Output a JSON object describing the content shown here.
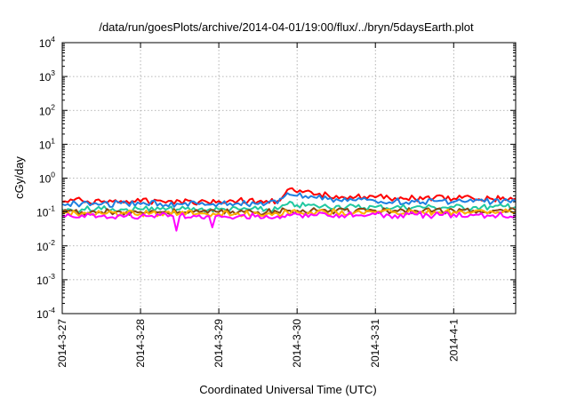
{
  "chart_data": {
    "type": "line",
    "title": "/data/run/goesPlots/archive/2014-04-01/19:00/flux/../bryn/5daysEarth.plot",
    "xlabel": "Coordinated Universal Time (UTC)",
    "ylabel": "cGy/day",
    "yscale": "log",
    "ylim": [
      0.0001,
      10000
    ],
    "y_ticks": [
      {
        "base": "10",
        "exp": "-4",
        "value": 0.0001
      },
      {
        "base": "10",
        "exp": "-3",
        "value": 0.001
      },
      {
        "base": "10",
        "exp": "-2",
        "value": 0.01
      },
      {
        "base": "10",
        "exp": "-1",
        "value": 0.1
      },
      {
        "base": "10",
        "exp": "0",
        "value": 1
      },
      {
        "base": "10",
        "exp": "1",
        "value": 10
      },
      {
        "base": "10",
        "exp": "2",
        "value": 100
      },
      {
        "base": "10",
        "exp": "3",
        "value": 1000
      },
      {
        "base": "10",
        "exp": "4",
        "value": 10000
      }
    ],
    "x_start": "2014-03-27T00:00",
    "x_end": "2014-04-01T19:00",
    "x_ticks": [
      {
        "label": "2014-3-27",
        "date": "2014-03-27T00:00"
      },
      {
        "label": "2014-3-28",
        "date": "2014-03-28T00:00"
      },
      {
        "label": "2014-3-29",
        "date": "2014-03-29T00:00"
      },
      {
        "label": "2014-3-30",
        "date": "2014-03-30T00:00"
      },
      {
        "label": "2014-3-31",
        "date": "2014-03-31T00:00"
      },
      {
        "label": "2014-4-1",
        "date": "2014-04-01T00:00"
      }
    ],
    "grid": true,
    "legend": "none",
    "series": [
      {
        "color": "#ff0000",
        "x": [
          "2014-03-27T00:00",
          "2014-03-27T06:00",
          "2014-03-27T12:00",
          "2014-03-27T18:00",
          "2014-03-28T00:00",
          "2014-03-28T06:00",
          "2014-03-28T12:00",
          "2014-03-28T18:00",
          "2014-03-29T00:00",
          "2014-03-29T06:00",
          "2014-03-29T12:00",
          "2014-03-29T18:00",
          "2014-03-29T21:00",
          "2014-03-30T00:00",
          "2014-03-30T06:00",
          "2014-03-30T12:00",
          "2014-03-30T18:00",
          "2014-03-31T00:00",
          "2014-03-31T06:00",
          "2014-03-31T12:00",
          "2014-03-31T18:00",
          "2014-04-01T00:00",
          "2014-04-01T06:00",
          "2014-04-01T12:00",
          "2014-04-01T19:00"
        ],
        "values": [
          0.2,
          0.22,
          0.2,
          0.21,
          0.2,
          0.22,
          0.21,
          0.2,
          0.21,
          0.22,
          0.2,
          0.21,
          0.45,
          0.38,
          0.33,
          0.3,
          0.28,
          0.27,
          0.26,
          0.25,
          0.26,
          0.25,
          0.25,
          0.24,
          0.25
        ]
      },
      {
        "color": "#1e7fe0",
        "x": [
          "2014-03-27T00:00",
          "2014-03-27T06:00",
          "2014-03-27T12:00",
          "2014-03-27T18:00",
          "2014-03-28T00:00",
          "2014-03-28T06:00",
          "2014-03-28T12:00",
          "2014-03-28T18:00",
          "2014-03-29T00:00",
          "2014-03-29T06:00",
          "2014-03-29T12:00",
          "2014-03-29T18:00",
          "2014-03-29T21:00",
          "2014-03-30T00:00",
          "2014-03-30T06:00",
          "2014-03-30T12:00",
          "2014-03-30T18:00",
          "2014-03-31T00:00",
          "2014-03-31T06:00",
          "2014-03-31T12:00",
          "2014-03-31T18:00",
          "2014-04-01T00:00",
          "2014-04-01T06:00",
          "2014-04-01T12:00",
          "2014-04-01T19:00"
        ],
        "values": [
          0.17,
          0.18,
          0.17,
          0.18,
          0.17,
          0.18,
          0.17,
          0.17,
          0.18,
          0.18,
          0.17,
          0.18,
          0.36,
          0.3,
          0.26,
          0.24,
          0.22,
          0.21,
          0.21,
          0.2,
          0.21,
          0.2,
          0.2,
          0.2,
          0.2
        ]
      },
      {
        "color": "#20c8a0",
        "x": [
          "2014-03-27T00:00",
          "2014-03-27T06:00",
          "2014-03-27T12:00",
          "2014-03-27T18:00",
          "2014-03-28T00:00",
          "2014-03-28T06:00",
          "2014-03-28T12:00",
          "2014-03-28T18:00",
          "2014-03-29T00:00",
          "2014-03-29T06:00",
          "2014-03-29T12:00",
          "2014-03-29T18:00",
          "2014-03-29T21:00",
          "2014-03-30T00:00",
          "2014-03-30T06:00",
          "2014-03-30T12:00",
          "2014-03-30T18:00",
          "2014-03-31T00:00",
          "2014-03-31T06:00",
          "2014-03-31T12:00",
          "2014-03-31T18:00",
          "2014-04-01T00:00",
          "2014-04-01T06:00",
          "2014-04-01T12:00",
          "2014-04-01T19:00"
        ],
        "values": [
          0.12,
          0.12,
          0.12,
          0.12,
          0.12,
          0.12,
          0.12,
          0.12,
          0.12,
          0.12,
          0.12,
          0.12,
          0.17,
          0.16,
          0.15,
          0.15,
          0.14,
          0.14,
          0.14,
          0.14,
          0.14,
          0.14,
          0.14,
          0.14,
          0.14
        ]
      },
      {
        "color": "#8b4513",
        "x": [
          "2014-03-27T00:00",
          "2014-03-27T06:00",
          "2014-03-27T12:00",
          "2014-03-27T18:00",
          "2014-03-28T00:00",
          "2014-03-28T06:00",
          "2014-03-28T12:00",
          "2014-03-28T18:00",
          "2014-03-29T00:00",
          "2014-03-29T06:00",
          "2014-03-29T12:00",
          "2014-03-29T18:00",
          "2014-03-29T21:00",
          "2014-03-30T00:00",
          "2014-03-30T06:00",
          "2014-03-30T12:00",
          "2014-03-30T18:00",
          "2014-03-31T00:00",
          "2014-03-31T06:00",
          "2014-03-31T12:00",
          "2014-03-31T18:00",
          "2014-04-01T00:00",
          "2014-04-01T06:00",
          "2014-04-01T12:00",
          "2014-04-01T19:00"
        ],
        "values": [
          0.1,
          0.1,
          0.1,
          0.1,
          0.1,
          0.1,
          0.1,
          0.1,
          0.1,
          0.1,
          0.1,
          0.1,
          0.11,
          0.11,
          0.11,
          0.11,
          0.11,
          0.11,
          0.11,
          0.11,
          0.11,
          0.11,
          0.11,
          0.11,
          0.11
        ]
      },
      {
        "color": "#ffb000",
        "x": [
          "2014-03-27T00:00",
          "2014-03-27T06:00",
          "2014-03-27T12:00",
          "2014-03-27T18:00",
          "2014-03-28T00:00",
          "2014-03-28T06:00",
          "2014-03-28T12:00",
          "2014-03-28T18:00",
          "2014-03-29T00:00",
          "2014-03-29T06:00",
          "2014-03-29T12:00",
          "2014-03-29T18:00",
          "2014-03-29T21:00",
          "2014-03-30T00:00",
          "2014-03-30T06:00",
          "2014-03-30T12:00",
          "2014-03-30T18:00",
          "2014-03-31T00:00",
          "2014-03-31T06:00",
          "2014-03-31T12:00",
          "2014-03-31T18:00",
          "2014-04-01T00:00",
          "2014-04-01T06:00",
          "2014-04-01T12:00",
          "2014-04-01T19:00"
        ],
        "values": [
          0.09,
          0.09,
          0.09,
          0.09,
          0.09,
          0.09,
          0.09,
          0.09,
          0.09,
          0.09,
          0.09,
          0.09,
          0.1,
          0.1,
          0.1,
          0.1,
          0.1,
          0.1,
          0.1,
          0.1,
          0.1,
          0.1,
          0.1,
          0.1,
          0.1
        ]
      },
      {
        "color": "#ff00ff",
        "x": [
          "2014-03-27T00:00",
          "2014-03-27T06:00",
          "2014-03-27T12:00",
          "2014-03-27T18:00",
          "2014-03-28T00:00",
          "2014-03-28T06:00",
          "2014-03-28T10:00",
          "2014-03-28T11:00",
          "2014-03-28T12:00",
          "2014-03-28T18:00",
          "2014-03-28T21:00",
          "2014-03-28T22:00",
          "2014-03-28T23:00",
          "2014-03-29T00:00",
          "2014-03-29T06:00",
          "2014-03-29T12:00",
          "2014-03-29T18:00",
          "2014-03-29T21:00",
          "2014-03-30T00:00",
          "2014-03-30T06:00",
          "2014-03-30T12:00",
          "2014-03-30T18:00",
          "2014-03-31T00:00",
          "2014-03-31T06:00",
          "2014-03-31T12:00",
          "2014-03-31T18:00",
          "2014-04-01T00:00",
          "2014-04-01T06:00",
          "2014-04-01T12:00",
          "2014-04-01T19:00"
        ],
        "values": [
          0.075,
          0.08,
          0.075,
          0.08,
          0.075,
          0.08,
          0.075,
          0.028,
          0.075,
          0.08,
          0.075,
          0.035,
          0.075,
          0.08,
          0.075,
          0.08,
          0.075,
          0.085,
          0.085,
          0.08,
          0.085,
          0.08,
          0.085,
          0.08,
          0.085,
          0.08,
          0.085,
          0.08,
          0.08,
          0.08
        ]
      }
    ]
  }
}
